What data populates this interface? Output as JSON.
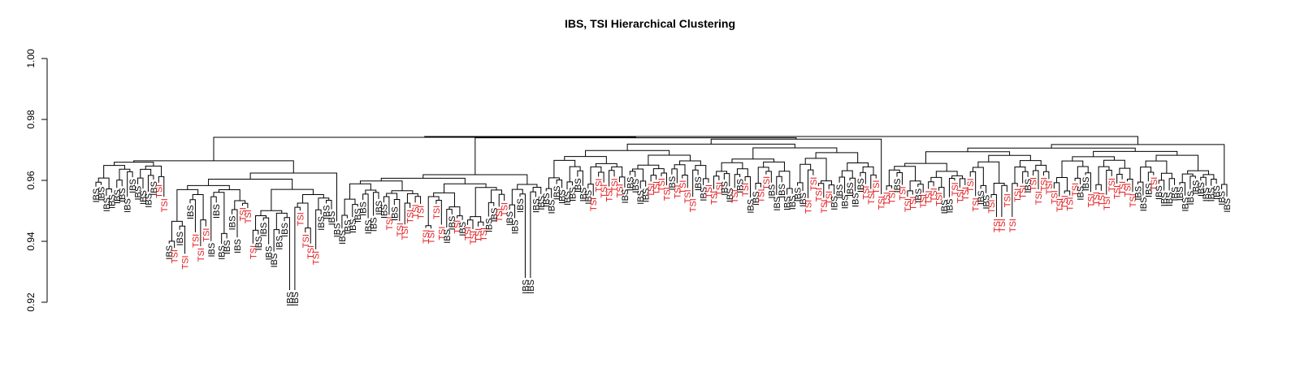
{
  "chart_data": {
    "type": "dendrogram",
    "title": "IBS, TSI Hierarchical Clustering",
    "xlabel": "",
    "ylabel": "",
    "ylim": [
      0.92,
      1.0
    ],
    "y_ticks": [
      "0.92",
      "0.94",
      "0.96",
      "0.98",
      "1.00"
    ],
    "leaf_label_colors": {
      "IBS": "#000000",
      "TSI": "#e31a1c"
    },
    "leaf_labels": [
      "IBS",
      "IBS",
      "IBS",
      "IBS",
      "IBS",
      "IBS",
      "IBS",
      "IBS",
      "IBS",
      "IBS",
      "IBS",
      "IBS",
      "TSI",
      "TSI",
      "IBS",
      "TSI",
      "IBS",
      "TSI",
      "IBS",
      "TSI",
      "TSI",
      "TSI",
      "IBS",
      "IBS",
      "IBS",
      "IBS",
      "IBS",
      "IBS",
      "TSI",
      "TSI",
      "TSI",
      "IBS",
      "IBS",
      "IBS",
      "IBS",
      "IBS",
      "IBS",
      "IBS",
      "IBS",
      "TSI",
      "TSI",
      "TSI",
      "TSI",
      "IBS",
      "IBS",
      "IBS",
      "IBS",
      "IBS",
      "IBS",
      "IBS",
      "IBS",
      "IBS",
      "IBS",
      "IBS",
      "IBS",
      "IBS",
      "TSI",
      "IBS",
      "TSI",
      "TSI",
      "TSI",
      "TSI",
      "TSI",
      "TSI",
      "TSI",
      "TSI",
      "TSI",
      "IBS",
      "IBS",
      "TSI",
      "IBS",
      "TSI",
      "TSI",
      "TSI",
      "TSI",
      "IBS",
      "IBS",
      "TSI",
      "TSI",
      "IBS",
      "IBS",
      "IBS",
      "IBS",
      "IBS",
      "IBS",
      "IBS",
      "IBS",
      "IBS",
      "IBS",
      "IBS",
      "IBS",
      "IBS",
      "IBS",
      "IBS",
      "IBS",
      "TSI",
      "TSI",
      "TSI",
      "TSI",
      "TSI",
      "TSI",
      "IBS",
      "IBS",
      "IBS",
      "IBS",
      "IBS",
      "TSI",
      "TSI",
      "TSI",
      "TSI",
      "IBS",
      "TSI",
      "TSI",
      "TSI",
      "TSI",
      "IBS",
      "IBS",
      "TSI",
      "TSI",
      "TSI",
      "IBS",
      "IBS",
      "TSI",
      "IBS",
      "TSI",
      "IBS",
      "IBS",
      "TSI",
      "TSI",
      "IBS",
      "IBS",
      "IBS",
      "IBS",
      "IBS",
      "IBS",
      "IBS",
      "TSI",
      "TSI",
      "TSI",
      "TSI",
      "TSI",
      "IBS",
      "IBS",
      "IBS",
      "IBS",
      "IBS",
      "IBS",
      "TSI",
      "TSI",
      "TSI",
      "TSI",
      "TSI",
      "TSI",
      "IBS",
      "TSI",
      "TSI",
      "TSI",
      "IBS",
      "TSI",
      "TSI",
      "TSI",
      "TSI",
      "IBS",
      "IBS",
      "TSI",
      "TSI",
      "TSI",
      "TSI",
      "TSI",
      "IBS",
      "IBS",
      "TSI",
      "TSI",
      "TSI",
      "TSI",
      "TSI",
      "TSI",
      "TSI",
      "IBS",
      "TSI",
      "TSI",
      "TSI",
      "TSI",
      "TSI",
      "TSI",
      "TSI",
      "TSI",
      "TSI",
      "IBS",
      "IBS",
      "TSI",
      "TSI",
      "TSI",
      "TSI",
      "TSI",
      "TSI",
      "TSI",
      "TSI",
      "TSI",
      "IBS",
      "IBS",
      "IBS",
      "TSI",
      "IBS",
      "IBS",
      "IBS",
      "IBS",
      "IBS",
      "IBS",
      "IBS",
      "IBS",
      "IBS",
      "IBS",
      "IBS",
      "IBS",
      "IBS",
      "IBS"
    ]
  }
}
